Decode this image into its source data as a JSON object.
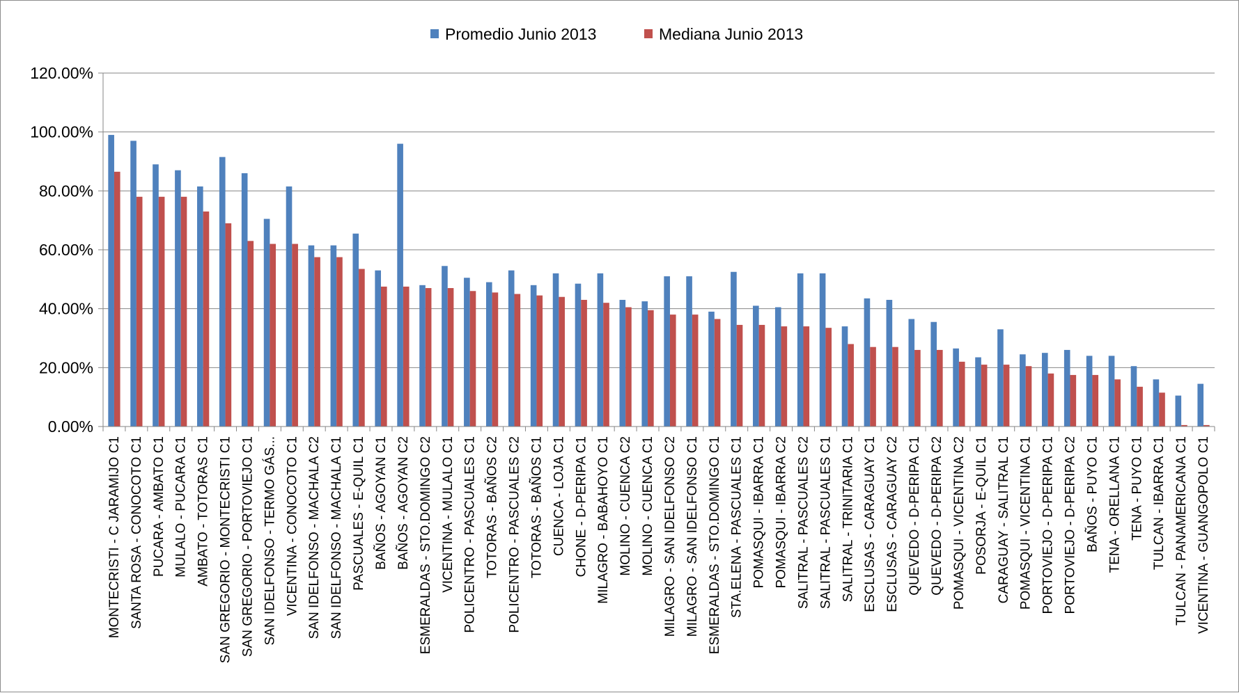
{
  "chart_data": {
    "type": "bar",
    "title": "",
    "xlabel": "",
    "ylabel": "",
    "ylim": [
      0,
      1.2
    ],
    "ytick_step": 0.2,
    "ytick_labels": [
      "0.00%",
      "20.00%",
      "40.00%",
      "60.00%",
      "80.00%",
      "100.00%",
      "120.00%"
    ],
    "grid": true,
    "legend": "top-center",
    "categories": [
      "MONTECRISTI - C JARAMIJO C1",
      "SANTA ROSA - CONOCOTO C1",
      "PUCARA - AMBATO C1",
      "MULALO - PUCARA C1",
      "AMBATO - TOTORAS C1",
      "SAN GREGORIO - MONTECRISTI C1",
      "SAN GREGORIO - PORTOVIEJO C1",
      "SAN IDELFONSO - TERMO GÁS...",
      "VICENTINA - CONOCOTO C1",
      "SAN IDELFONSO - MACHALA C2",
      "SAN IDELFONSO - MACHALA C1",
      "PASCUALES - E-QUIL C1",
      "BAÑOS - AGOYAN C1",
      "BAÑOS - AGOYAN C2",
      "ESMERALDAS - STO.DOMINGO C2",
      "VICENTINA - MULALO C1",
      "POLICENTRO - PASCUALES C1",
      "TOTORAS - BAÑOS C2",
      "POLICENTRO - PASCUALES C2",
      "TOTORAS - BAÑOS C1",
      "CUENCA - LOJA C1",
      "CHONE - D-PERIPA C1",
      "MILAGRO - BABAHOYO C1",
      "MOLINO - CUENCA C2",
      "MOLINO - CUENCA C1",
      "MILAGRO - SAN IDELFONSO C2",
      "MILAGRO - SAN IDELFONSO C1",
      "ESMERALDAS - STO.DOMINGO C1",
      "STA.ELENA - PASCUALES C1",
      "POMASQUI - IBARRA C1",
      "POMASQUI - IBARRA C2",
      "SALITRAL - PASCUALES C2",
      "SALITRAL - PASCUALES C1",
      "SALITRAL - TRINITARIA C1",
      "ESCLUSAS - CARAGUAY C1",
      "ESCLUSAS - CARAGUAY C2",
      "QUEVEDO - D-PERIPA C1",
      "QUEVEDO - D-PERIPA C2",
      "POMASQUI - VICENTINA C2",
      "POSORJA - E-QUIL C1",
      "CARAGUAY - SALITRAL C1",
      "POMASQUI - VICENTINA C1",
      "PORTOVIEJO - D-PERIPA C1",
      "PORTOVIEJO - D-PERIPA C2",
      "BAÑOS - PUYO C1",
      "TENA - ORELLANA C1",
      "TENA - PUYO C1",
      "TULCAN - IBARRA C1",
      "TULCAN - PANAMERICANA C1",
      "VICENTINA - GUANGOPOLO C1"
    ],
    "series": [
      {
        "name": "Promedio Junio 2013",
        "color": "#4f81bd",
        "values": [
          0.99,
          0.97,
          0.89,
          0.87,
          0.815,
          0.915,
          0.86,
          0.705,
          0.815,
          0.615,
          0.615,
          0.655,
          0.53,
          0.96,
          0.48,
          0.545,
          0.505,
          0.49,
          0.53,
          0.48,
          0.52,
          0.485,
          0.52,
          0.43,
          0.425,
          0.51,
          0.51,
          0.39,
          0.525,
          0.41,
          0.405,
          0.52,
          0.52,
          0.34,
          0.435,
          0.43,
          0.365,
          0.355,
          0.265,
          0.235,
          0.33,
          0.245,
          0.25,
          0.26,
          0.24,
          0.24,
          0.205,
          0.16,
          0.105,
          0.145
        ]
      },
      {
        "name": "Mediana Junio 2013",
        "color": "#c0504d",
        "values": [
          0.865,
          0.78,
          0.78,
          0.78,
          0.73,
          0.69,
          0.63,
          0.62,
          0.62,
          0.575,
          0.575,
          0.535,
          0.475,
          0.475,
          0.47,
          0.47,
          0.46,
          0.455,
          0.45,
          0.445,
          0.44,
          0.43,
          0.42,
          0.405,
          0.395,
          0.38,
          0.38,
          0.365,
          0.345,
          0.345,
          0.34,
          0.34,
          0.335,
          0.28,
          0.27,
          0.27,
          0.26,
          0.26,
          0.22,
          0.21,
          0.21,
          0.205,
          0.18,
          0.175,
          0.175,
          0.16,
          0.135,
          0.115,
          0.005,
          0.005
        ]
      }
    ]
  }
}
